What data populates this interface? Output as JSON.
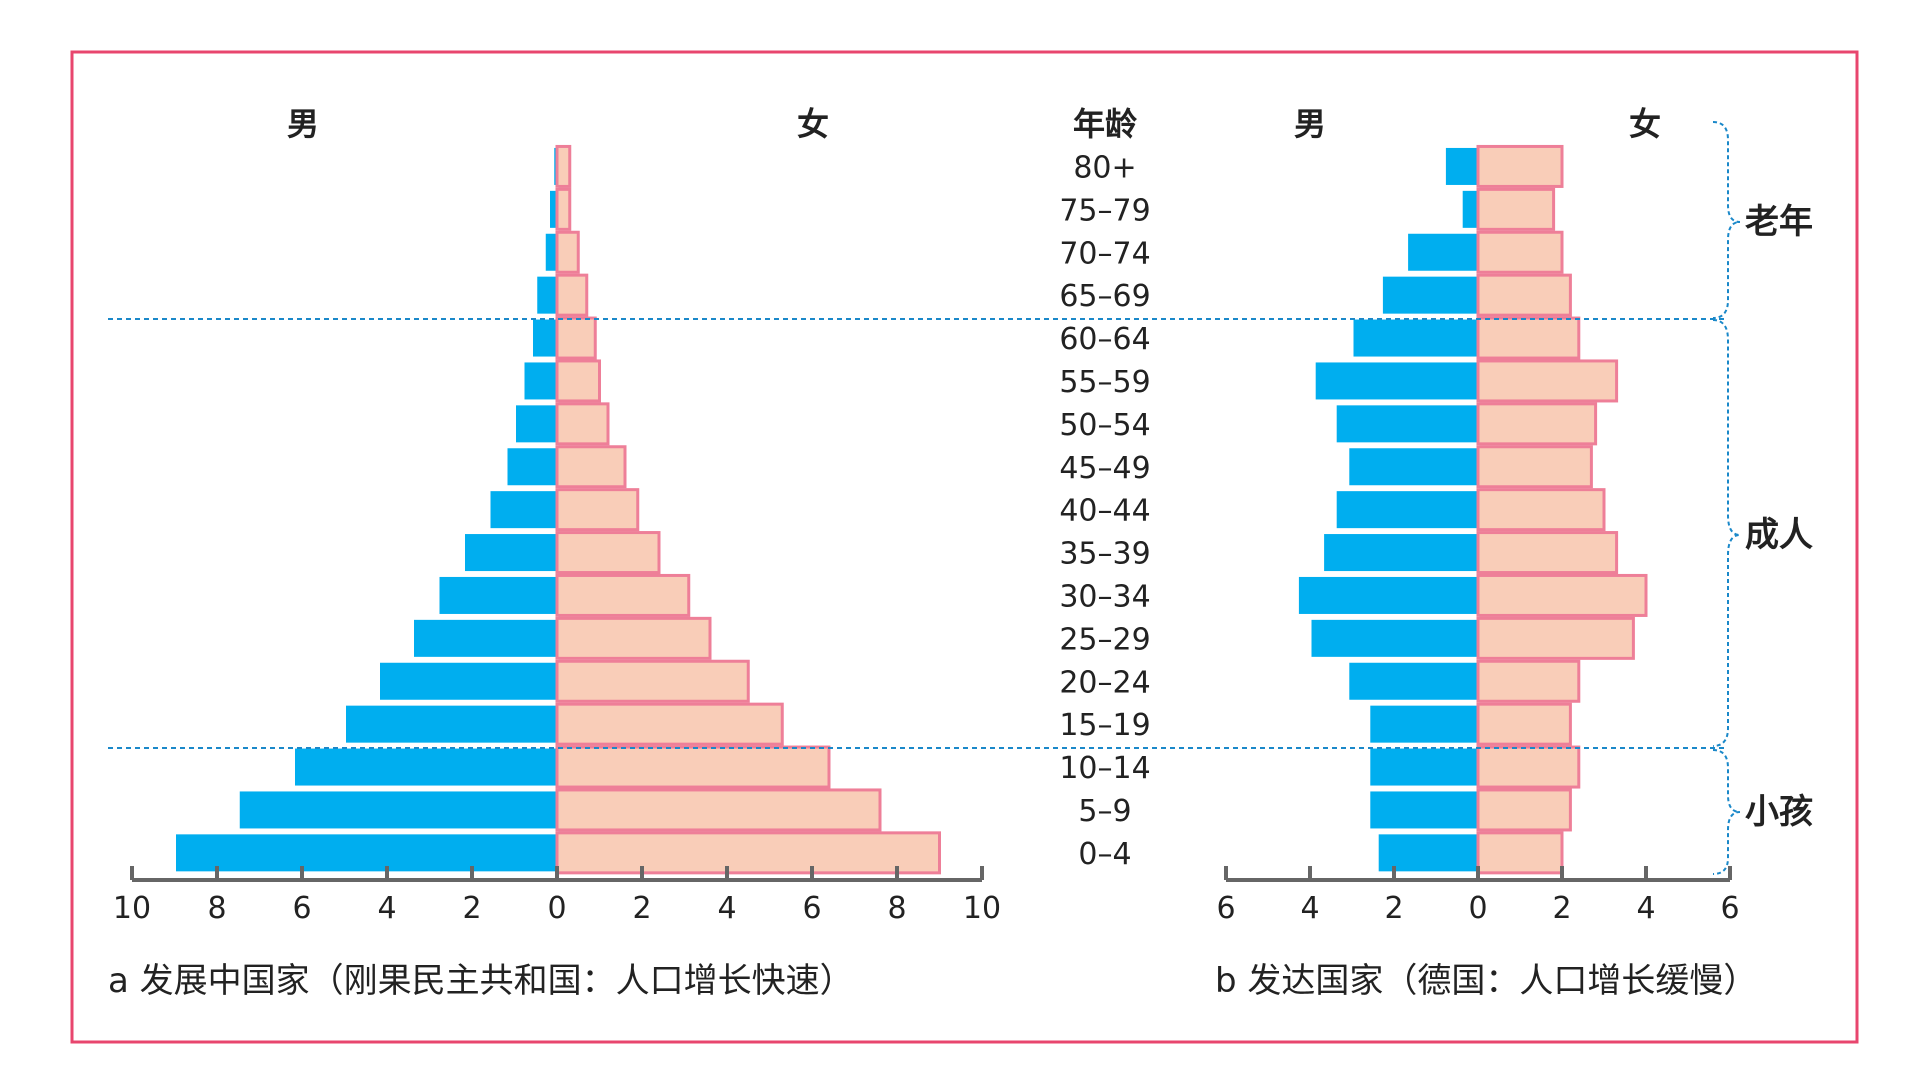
{
  "headers": {
    "age": "年龄",
    "male": "男",
    "female": "女"
  },
  "groups": {
    "elderly": "老年",
    "adult": "成人",
    "child": "小孩"
  },
  "colors": {
    "male": "#00aeef",
    "female": "#f9cdb8",
    "female_edge": "#ee7f98",
    "frame": "#e8466e",
    "divider": "#1a88c9"
  },
  "chart_data": [
    {
      "type": "bar",
      "orientation": "horizontal-pyramid",
      "caption": "a 发展中国家（刚果民主共和国：人口增长快速）",
      "categories": [
        "80+",
        "75–79",
        "70–74",
        "65–69",
        "60–64",
        "55–59",
        "50–54",
        "45–49",
        "40–44",
        "35–39",
        "30–34",
        "25–29",
        "20–24",
        "15–19",
        "10–14",
        "5–9",
        "0–4"
      ],
      "series": [
        {
          "name": "男",
          "values": [
            0.1,
            0.2,
            0.3,
            0.5,
            0.6,
            0.8,
            1.0,
            1.2,
            1.6,
            2.2,
            2.8,
            3.4,
            4.2,
            5.0,
            6.2,
            7.5,
            9.0
          ]
        },
        {
          "name": "女",
          "values": [
            0.3,
            0.3,
            0.5,
            0.7,
            0.9,
            1.0,
            1.2,
            1.6,
            1.9,
            2.4,
            3.1,
            3.6,
            4.5,
            5.3,
            6.4,
            7.6,
            9.0
          ]
        }
      ],
      "xlim": [
        0,
        10
      ],
      "ticks": [
        "10",
        "8",
        "6",
        "4",
        "2",
        "0",
        "2",
        "4",
        "6",
        "8",
        "10"
      ]
    },
    {
      "type": "bar",
      "orientation": "horizontal-pyramid",
      "caption": "b 发达国家（德国：人口增长缓慢）",
      "categories": [
        "80+",
        "75–79",
        "70–74",
        "65–69",
        "60–64",
        "55–59",
        "50–54",
        "45–49",
        "40–44",
        "35–39",
        "30–34",
        "25–29",
        "20–24",
        "15–19",
        "10–14",
        "5–9",
        "0–4"
      ],
      "series": [
        {
          "name": "男",
          "values": [
            0.8,
            0.4,
            1.7,
            2.3,
            3.0,
            3.9,
            3.4,
            3.1,
            3.4,
            3.7,
            4.3,
            4.0,
            3.1,
            2.6,
            2.6,
            2.6,
            2.4
          ]
        },
        {
          "name": "女",
          "values": [
            2.0,
            1.8,
            2.0,
            2.2,
            2.4,
            3.3,
            2.8,
            2.7,
            3.0,
            3.3,
            4.0,
            3.7,
            2.4,
            2.2,
            2.4,
            2.2,
            2.0
          ]
        }
      ],
      "xlim": [
        0,
        6
      ],
      "ticks": [
        "6",
        "4",
        "2",
        "0",
        "2",
        "4",
        "6"
      ]
    }
  ]
}
